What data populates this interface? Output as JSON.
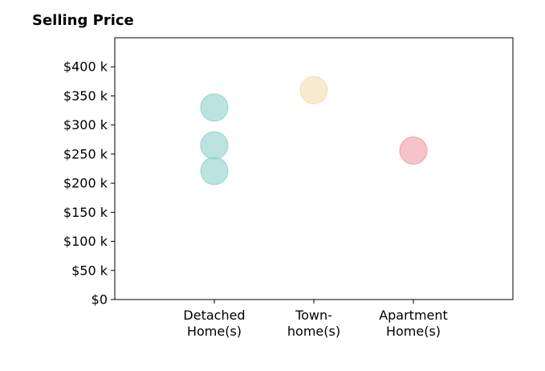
{
  "chart_data": {
    "type": "scatter",
    "title": "Selling Price",
    "xlabel": "",
    "ylabel": "",
    "categories": [
      [
        "Detached",
        "Home(s)"
      ],
      [
        "Town-",
        "home(s)"
      ],
      [
        "Apartment",
        "Home(s)"
      ]
    ],
    "ylim": [
      0,
      450
    ],
    "yticks": [
      0,
      50,
      100,
      150,
      200,
      250,
      300,
      350,
      400
    ],
    "ytick_labels": [
      "$0",
      "$50 k",
      "$100 k",
      "$150 k",
      "$200 k",
      "$250 k",
      "$300 k",
      "$350 k",
      "$400 k"
    ],
    "grid": false,
    "points": [
      {
        "category_index": 0,
        "value": 330,
        "color": "#8fd1c9"
      },
      {
        "category_index": 0,
        "value": 265,
        "color": "#8fd1c9"
      },
      {
        "category_index": 0,
        "value": 221,
        "color": "#8fd1c9"
      },
      {
        "category_index": 1,
        "value": 360,
        "color": "#f3ddb0"
      },
      {
        "category_index": 2,
        "value": 256,
        "color": "#f19aa3"
      }
    ]
  }
}
